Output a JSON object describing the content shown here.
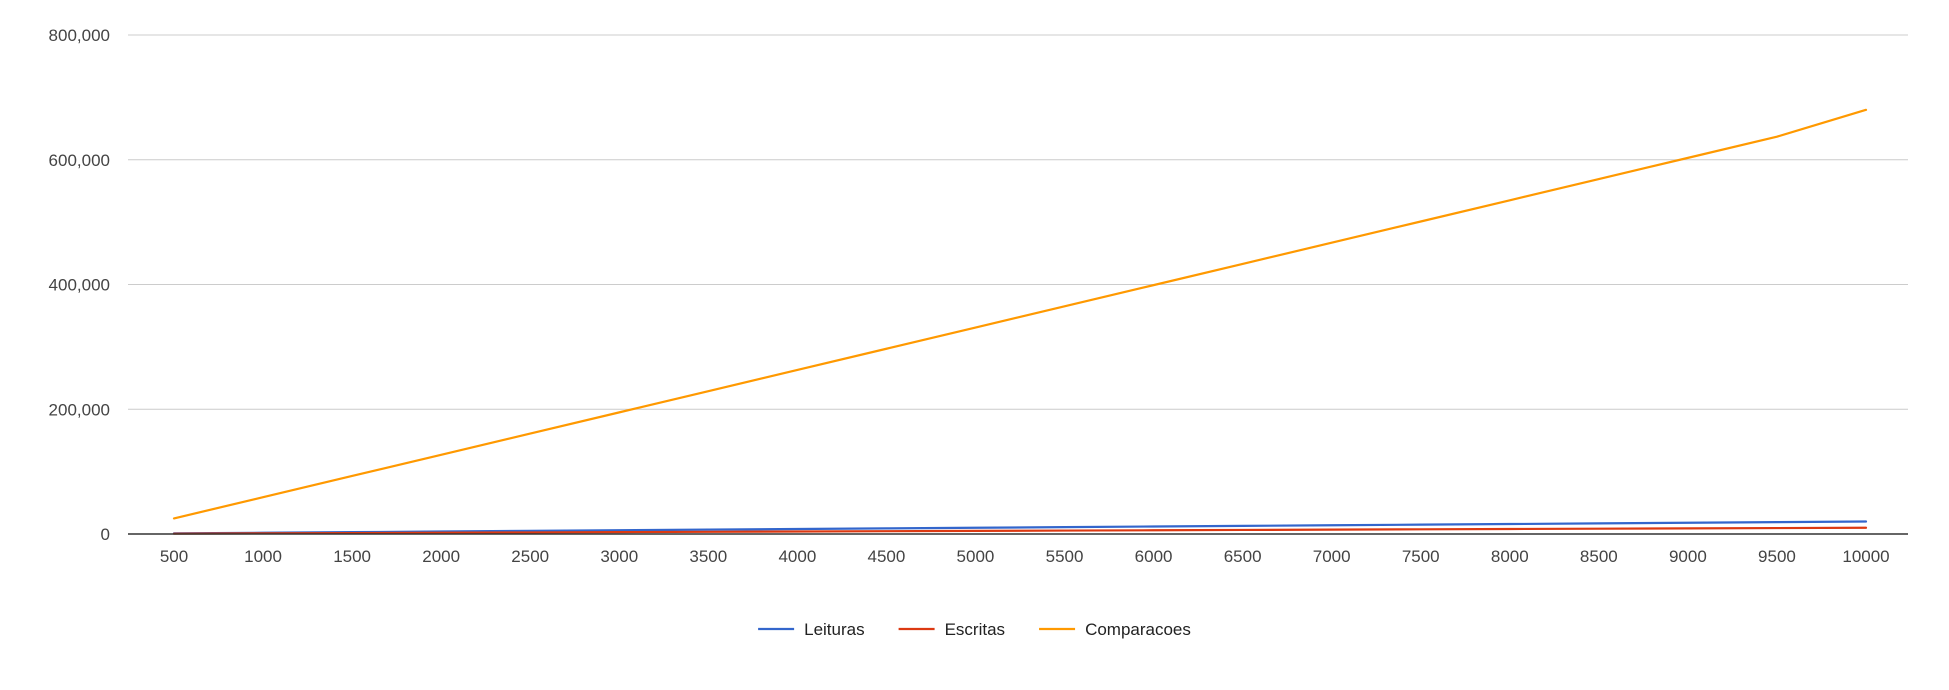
{
  "chart_data": {
    "type": "line",
    "title": "",
    "xlabel": "",
    "ylabel": "",
    "x": [
      500,
      1000,
      1500,
      2000,
      2500,
      3000,
      3500,
      4000,
      4500,
      5000,
      5500,
      6000,
      6500,
      7000,
      7500,
      8000,
      8500,
      9000,
      9500,
      10000
    ],
    "x_tick_labels": [
      "500",
      "1000",
      "1500",
      "2000",
      "2500",
      "3000",
      "3500",
      "4000",
      "4500",
      "5000",
      "5500",
      "6000",
      "6500",
      "7000",
      "7500",
      "8000",
      "8500",
      "9000",
      "9500",
      "10000"
    ],
    "ylim": [
      0,
      800000
    ],
    "y_ticks": [
      0,
      200000,
      400000,
      600000,
      800000
    ],
    "y_tick_labels": [
      "0",
      "200,000",
      "400,000",
      "600,000",
      "800,000"
    ],
    "grid": true,
    "legend_position": "bottom",
    "series": [
      {
        "name": "Leituras",
        "color": "#3366cc",
        "values": [
          1000,
          2000,
          3000,
          4000,
          5000,
          6000,
          7000,
          8000,
          9000,
          10000,
          11000,
          12000,
          13000,
          14000,
          15000,
          16000,
          17000,
          18000,
          19000,
          20000
        ]
      },
      {
        "name": "Escritas",
        "color": "#dc3912",
        "values": [
          500,
          1000,
          1500,
          2000,
          2500,
          3000,
          3500,
          4000,
          4500,
          5000,
          5500,
          6000,
          6500,
          7000,
          7500,
          8000,
          8500,
          9000,
          9500,
          10000
        ]
      },
      {
        "name": "Comparacoes",
        "color": "#ff9900",
        "values": [
          25000,
          59000,
          93000,
          127000,
          161000,
          195000,
          229000,
          263000,
          297000,
          331000,
          365000,
          399000,
          433000,
          467000,
          501000,
          535000,
          569000,
          603000,
          637000,
          680000
        ]
      }
    ]
  }
}
